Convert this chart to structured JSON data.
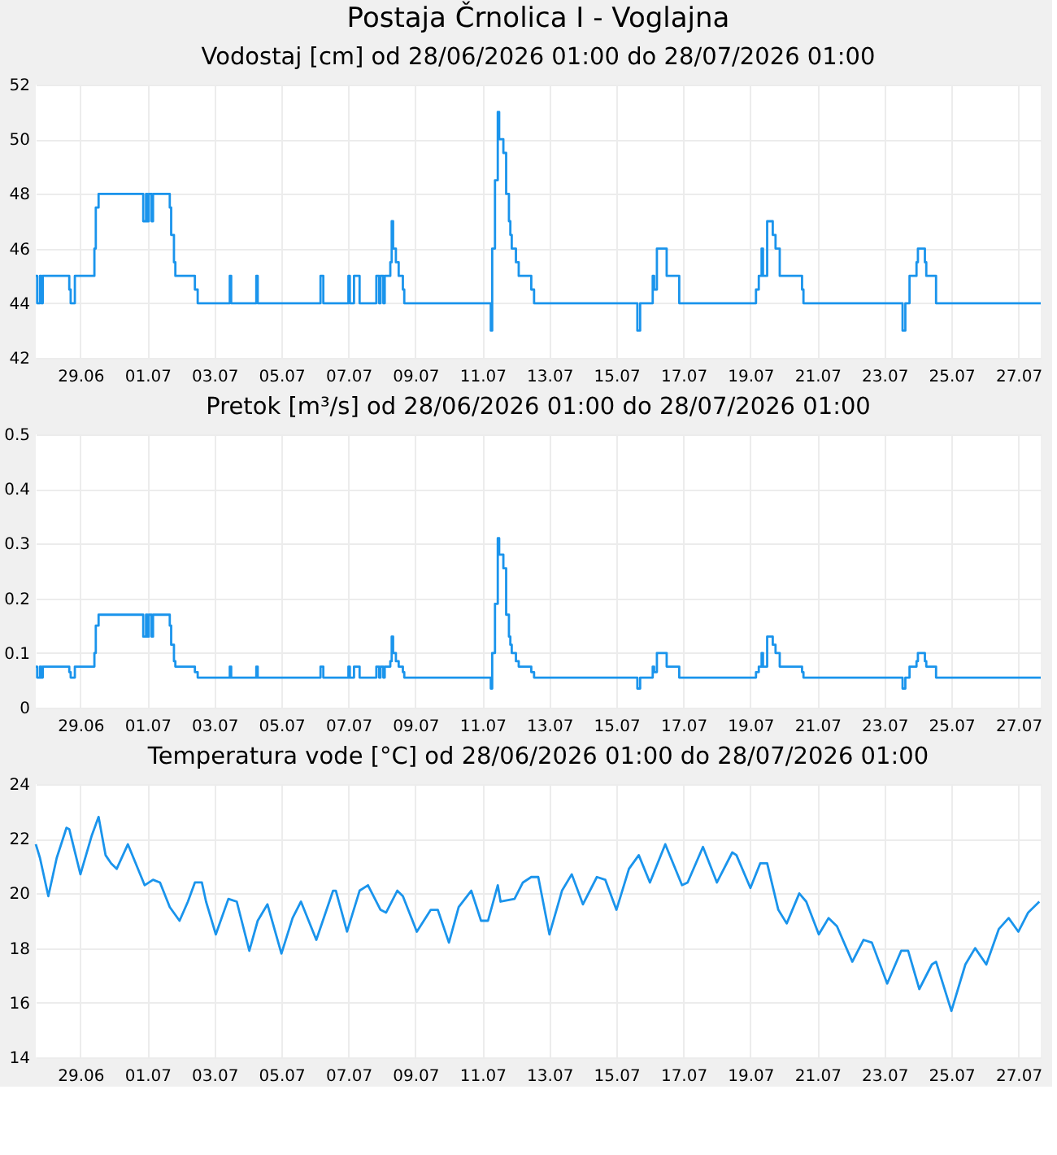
{
  "chart_data": [
    {
      "type": "step",
      "title": "Postaja Črnolica I - Voglajna",
      "subtitle": "Vodostaj [cm] od 28/06/2026 01:00 do 28/07/2026 01:00",
      "x": [
        "2026-06-27T16:00",
        "2026-06-27T17:00",
        "2026-06-27T19:00",
        "2026-06-27T20:00",
        "2026-06-27T21:00",
        "2026-06-28T16:00",
        "2026-06-28T17:00",
        "2026-06-28T20:00",
        "2026-06-29T10:00",
        "2026-06-29T11:00",
        "2026-06-29T13:00",
        "2026-06-30T21:00",
        "2026-06-30T23:00",
        "2026-07-01T00:00",
        "2026-07-01T01:00",
        "2026-07-01T03:00",
        "2026-07-01T04:00",
        "2026-07-01T16:00",
        "2026-07-01T17:00",
        "2026-07-01T19:00",
        "2026-07-01T20:00",
        "2026-07-02T10:00",
        "2026-07-02T12:00",
        "2026-07-03T11:00",
        "2026-07-03T12:00",
        "2026-07-04T06:00",
        "2026-07-04T07:00",
        "2026-07-06T04:00",
        "2026-07-06T06:00",
        "2026-07-07T00:00",
        "2026-07-07T01:00",
        "2026-07-07T04:00",
        "2026-07-07T08:00",
        "2026-07-07T20:00",
        "2026-07-07T22:00",
        "2026-07-07T23:00",
        "2026-07-08T01:00",
        "2026-07-08T02:00",
        "2026-07-08T06:00",
        "2026-07-08T07:00",
        "2026-07-08T08:00",
        "2026-07-08T10:00",
        "2026-07-08T12:00",
        "2026-07-08T15:00",
        "2026-07-08T16:00",
        "2026-07-11T06:00",
        "2026-07-11T07:00",
        "2026-07-11T09:00",
        "2026-07-11T11:00",
        "2026-07-11T12:00",
        "2026-07-11T15:00",
        "2026-07-11T17:00",
        "2026-07-11T19:00",
        "2026-07-11T20:00",
        "2026-07-11T21:00",
        "2026-07-12T00:00",
        "2026-07-12T02:00",
        "2026-07-12T11:00",
        "2026-07-12T13:00",
        "2026-07-15T15:00",
        "2026-07-15T17:00",
        "2026-07-16T02:00",
        "2026-07-16T03:00",
        "2026-07-16T05:00",
        "2026-07-16T12:00",
        "2026-07-16T21:00",
        "2026-07-19T04:00",
        "2026-07-19T06:00",
        "2026-07-19T08:00",
        "2026-07-19T09:00",
        "2026-07-19T12:00",
        "2026-07-19T16:00",
        "2026-07-19T18:00",
        "2026-07-19T21:00",
        "2026-07-20T13:00",
        "2026-07-20T14:00",
        "2026-07-23T13:00",
        "2026-07-23T15:00",
        "2026-07-23T18:00",
        "2026-07-23T23:00",
        "2026-07-24T00:00",
        "2026-07-24T05:00",
        "2026-07-24T06:00",
        "2026-07-24T13:00",
        "2026-07-27T16:00"
      ],
      "series": [
        {
          "color": "#1a94ec",
          "values": [
            45,
            44,
            45,
            44,
            45,
            44.5,
            44,
            45,
            46,
            47.5,
            48,
            47,
            48,
            47,
            48,
            47,
            48,
            47.5,
            46.5,
            45.5,
            45,
            44.5,
            44,
            45,
            44,
            45,
            44,
            45,
            44,
            45,
            44,
            45,
            44,
            45,
            44,
            45,
            44,
            45,
            45.5,
            47,
            46,
            45.5,
            45,
            44.5,
            44,
            43,
            46,
            48.5,
            51,
            50,
            49.5,
            48,
            47,
            46.5,
            46,
            45.5,
            45,
            44.5,
            44,
            43,
            44,
            45,
            44.5,
            46,
            45,
            44,
            44.5,
            45,
            46,
            45,
            47,
            46.5,
            46,
            45,
            44.5,
            44,
            43,
            44,
            45,
            45.5,
            46,
            45.5,
            45,
            44,
            44
          ]
        }
      ],
      "xlim": [
        "2026-06-27T16:00",
        "2026-07-27T16:00"
      ],
      "xticks": [
        {
          "value": "2026-06-29",
          "label": "29.06"
        },
        {
          "value": "2026-07-01",
          "label": "01.07"
        },
        {
          "value": "2026-07-03",
          "label": "03.07"
        },
        {
          "value": "2026-07-05",
          "label": "05.07"
        },
        {
          "value": "2026-07-07",
          "label": "07.07"
        },
        {
          "value": "2026-07-09",
          "label": "09.07"
        },
        {
          "value": "2026-07-11",
          "label": "11.07"
        },
        {
          "value": "2026-07-13",
          "label": "13.07"
        },
        {
          "value": "2026-07-15",
          "label": "15.07"
        },
        {
          "value": "2026-07-17",
          "label": "17.07"
        },
        {
          "value": "2026-07-19",
          "label": "19.07"
        },
        {
          "value": "2026-07-21",
          "label": "21.07"
        },
        {
          "value": "2026-07-23",
          "label": "23.07"
        },
        {
          "value": "2026-07-25",
          "label": "25.07"
        },
        {
          "value": "2026-07-27",
          "label": "27.07"
        }
      ],
      "ylim": [
        42,
        52
      ],
      "yticks": [
        42,
        44,
        46,
        48,
        50,
        52
      ],
      "grid": true
    },
    {
      "type": "step",
      "title": "Pretok [m³/s] od 28/06/2026 01:00 do 28/07/2026 01:00",
      "x": [
        "2026-06-27T16:00",
        "2026-06-27T17:00",
        "2026-06-27T19:00",
        "2026-06-27T20:00",
        "2026-06-27T21:00",
        "2026-06-28T16:00",
        "2026-06-28T17:00",
        "2026-06-28T20:00",
        "2026-06-29T10:00",
        "2026-06-29T11:00",
        "2026-06-29T13:00",
        "2026-06-30T21:00",
        "2026-06-30T23:00",
        "2026-07-01T00:00",
        "2026-07-01T01:00",
        "2026-07-01T03:00",
        "2026-07-01T04:00",
        "2026-07-01T16:00",
        "2026-07-01T17:00",
        "2026-07-01T19:00",
        "2026-07-01T20:00",
        "2026-07-02T10:00",
        "2026-07-02T12:00",
        "2026-07-03T11:00",
        "2026-07-03T12:00",
        "2026-07-04T06:00",
        "2026-07-04T07:00",
        "2026-07-06T04:00",
        "2026-07-06T06:00",
        "2026-07-07T00:00",
        "2026-07-07T01:00",
        "2026-07-07T04:00",
        "2026-07-07T08:00",
        "2026-07-07T20:00",
        "2026-07-07T22:00",
        "2026-07-07T23:00",
        "2026-07-08T01:00",
        "2026-07-08T02:00",
        "2026-07-08T06:00",
        "2026-07-08T07:00",
        "2026-07-08T08:00",
        "2026-07-08T10:00",
        "2026-07-08T12:00",
        "2026-07-08T15:00",
        "2026-07-08T16:00",
        "2026-07-11T06:00",
        "2026-07-11T07:00",
        "2026-07-11T09:00",
        "2026-07-11T11:00",
        "2026-07-11T12:00",
        "2026-07-11T15:00",
        "2026-07-11T17:00",
        "2026-07-11T19:00",
        "2026-07-11T20:00",
        "2026-07-11T21:00",
        "2026-07-12T00:00",
        "2026-07-12T02:00",
        "2026-07-12T11:00",
        "2026-07-12T13:00",
        "2026-07-15T15:00",
        "2026-07-15T17:00",
        "2026-07-16T02:00",
        "2026-07-16T03:00",
        "2026-07-16T05:00",
        "2026-07-16T12:00",
        "2026-07-16T21:00",
        "2026-07-19T04:00",
        "2026-07-19T06:00",
        "2026-07-19T08:00",
        "2026-07-19T09:00",
        "2026-07-19T12:00",
        "2026-07-19T16:00",
        "2026-07-19T18:00",
        "2026-07-19T21:00",
        "2026-07-20T13:00",
        "2026-07-20T14:00",
        "2026-07-23T13:00",
        "2026-07-23T15:00",
        "2026-07-23T18:00",
        "2026-07-23T23:00",
        "2026-07-24T00:00",
        "2026-07-24T05:00",
        "2026-07-24T06:00",
        "2026-07-24T13:00",
        "2026-07-27T16:00"
      ],
      "series": [
        {
          "color": "#1a94ec",
          "values": [
            0.075,
            0.055,
            0.075,
            0.055,
            0.075,
            0.065,
            0.055,
            0.075,
            0.1,
            0.15,
            0.17,
            0.13,
            0.17,
            0.13,
            0.17,
            0.13,
            0.17,
            0.15,
            0.115,
            0.085,
            0.075,
            0.065,
            0.055,
            0.075,
            0.055,
            0.075,
            0.055,
            0.075,
            0.055,
            0.075,
            0.055,
            0.075,
            0.055,
            0.075,
            0.055,
            0.075,
            0.055,
            0.075,
            0.085,
            0.13,
            0.1,
            0.085,
            0.075,
            0.065,
            0.055,
            0.035,
            0.1,
            0.19,
            0.31,
            0.28,
            0.255,
            0.17,
            0.13,
            0.115,
            0.1,
            0.085,
            0.075,
            0.065,
            0.055,
            0.035,
            0.055,
            0.075,
            0.065,
            0.1,
            0.075,
            0.055,
            0.065,
            0.075,
            0.1,
            0.075,
            0.13,
            0.115,
            0.1,
            0.075,
            0.065,
            0.055,
            0.035,
            0.055,
            0.075,
            0.085,
            0.1,
            0.085,
            0.075,
            0.055,
            0.055
          ]
        }
      ],
      "xlim": [
        "2026-06-27T16:00",
        "2026-07-27T16:00"
      ],
      "xticks": [
        {
          "value": "2026-06-29",
          "label": "29.06"
        },
        {
          "value": "2026-07-01",
          "label": "01.07"
        },
        {
          "value": "2026-07-03",
          "label": "03.07"
        },
        {
          "value": "2026-07-05",
          "label": "05.07"
        },
        {
          "value": "2026-07-07",
          "label": "07.07"
        },
        {
          "value": "2026-07-09",
          "label": "09.07"
        },
        {
          "value": "2026-07-11",
          "label": "11.07"
        },
        {
          "value": "2026-07-13",
          "label": "13.07"
        },
        {
          "value": "2026-07-15",
          "label": "15.07"
        },
        {
          "value": "2026-07-17",
          "label": "17.07"
        },
        {
          "value": "2026-07-19",
          "label": "19.07"
        },
        {
          "value": "2026-07-21",
          "label": "21.07"
        },
        {
          "value": "2026-07-23",
          "label": "23.07"
        },
        {
          "value": "2026-07-25",
          "label": "25.07"
        },
        {
          "value": "2026-07-27",
          "label": "27.07"
        }
      ],
      "ylim": [
        0,
        0.5
      ],
      "yticks": [
        0,
        0.1,
        0.2,
        0.3,
        0.4,
        0.5
      ],
      "grid": true
    },
    {
      "type": "line",
      "title": "Temperatura vode [°C] od 28/06/2026 01:00 do 28/07/2026 01:00",
      "x": [
        "2026-06-27T16:00",
        "2026-06-27T19:00",
        "2026-06-28T01:00",
        "2026-06-28T07:00",
        "2026-06-28T14:00",
        "2026-06-28T16:00",
        "2026-06-29T00:00",
        "2026-06-29T08:00",
        "2026-06-29T13:00",
        "2026-06-29T18:00",
        "2026-06-29T22:00",
        "2026-06-30T02:00",
        "2026-06-30T10:00",
        "2026-06-30T22:00",
        "2026-07-01T04:00",
        "2026-07-01T09:00",
        "2026-07-01T16:00",
        "2026-07-01T23:00",
        "2026-07-02T05:00",
        "2026-07-02T10:00",
        "2026-07-02T15:00",
        "2026-07-02T18:00",
        "2026-07-03T01:00",
        "2026-07-03T10:00",
        "2026-07-03T16:00",
        "2026-07-04T01:00",
        "2026-07-04T07:00",
        "2026-07-04T14:00",
        "2026-07-05T00:00",
        "2026-07-05T08:00",
        "2026-07-05T14:00",
        "2026-07-06T01:00",
        "2026-07-06T13:00",
        "2026-07-06T15:00",
        "2026-07-06T23:00",
        "2026-07-07T08:00",
        "2026-07-07T14:00",
        "2026-07-07T23:00",
        "2026-07-08T03:00",
        "2026-07-08T11:00",
        "2026-07-08T15:00",
        "2026-07-09T01:00",
        "2026-07-09T11:00",
        "2026-07-09T16:00",
        "2026-07-10T00:00",
        "2026-07-10T07:00",
        "2026-07-10T16:00",
        "2026-07-10T23:00",
        "2026-07-11T04:00",
        "2026-07-11T11:00",
        "2026-07-11T13:00",
        "2026-07-11T23:00",
        "2026-07-12T05:00",
        "2026-07-12T11:00",
        "2026-07-12T16:00",
        "2026-07-13T00:00",
        "2026-07-13T09:00",
        "2026-07-13T16:00",
        "2026-07-14T00:00",
        "2026-07-14T10:00",
        "2026-07-14T16:00",
        "2026-07-15T00:00",
        "2026-07-15T09:00",
        "2026-07-15T16:00",
        "2026-07-16T00:00",
        "2026-07-16T11:00",
        "2026-07-16T23:00",
        "2026-07-17T03:00",
        "2026-07-17T14:00",
        "2026-07-18T00:00",
        "2026-07-18T11:00",
        "2026-07-18T14:00",
        "2026-07-19T00:00",
        "2026-07-19T07:00",
        "2026-07-19T12:00",
        "2026-07-19T20:00",
        "2026-07-20T02:00",
        "2026-07-20T11:00",
        "2026-07-20T16:00",
        "2026-07-21T01:00",
        "2026-07-21T08:00",
        "2026-07-21T14:00",
        "2026-07-22T01:00",
        "2026-07-22T09:00",
        "2026-07-22T15:00",
        "2026-07-23T02:00",
        "2026-07-23T12:00",
        "2026-07-23T17:00",
        "2026-07-24T01:00",
        "2026-07-24T10:00",
        "2026-07-24T13:00",
        "2026-07-25T00:00",
        "2026-07-25T10:00",
        "2026-07-25T17:00",
        "2026-07-26T01:00",
        "2026-07-26T10:00",
        "2026-07-26T17:00",
        "2026-07-27T00:00",
        "2026-07-27T07:00",
        "2026-07-27T15:00"
      ],
      "series": [
        {
          "color": "#1a94ec",
          "values": [
            21.8,
            21.3,
            19.9,
            21.3,
            22.4,
            22.35,
            20.7,
            22.1,
            22.8,
            21.4,
            21.1,
            20.9,
            21.8,
            20.3,
            20.5,
            20.4,
            19.5,
            19.0,
            19.7,
            20.4,
            20.4,
            19.7,
            18.5,
            19.8,
            19.7,
            17.9,
            19.0,
            19.6,
            17.8,
            19.1,
            19.7,
            18.3,
            20.1,
            20.1,
            18.6,
            20.1,
            20.3,
            19.4,
            19.3,
            20.1,
            19.9,
            18.6,
            19.4,
            19.4,
            18.2,
            19.5,
            20.1,
            19.0,
            19.0,
            20.3,
            19.7,
            19.8,
            20.4,
            20.6,
            20.6,
            18.5,
            20.1,
            20.7,
            19.6,
            20.6,
            20.5,
            19.4,
            20.9,
            21.4,
            20.4,
            21.8,
            20.3,
            20.4,
            21.7,
            20.4,
            21.5,
            21.4,
            20.2,
            21.1,
            21.1,
            19.4,
            18.9,
            20.0,
            19.7,
            18.5,
            19.1,
            18.8,
            17.5,
            18.3,
            18.2,
            16.7,
            17.9,
            17.9,
            16.5,
            17.4,
            17.5,
            15.7,
            17.4,
            18.0,
            17.4,
            18.7,
            19.1,
            18.6,
            19.3,
            19.7
          ]
        }
      ],
      "xlim": [
        "2026-06-27T16:00",
        "2026-07-27T16:00"
      ],
      "xticks": [
        {
          "value": "2026-06-29",
          "label": "29.06"
        },
        {
          "value": "2026-07-01",
          "label": "01.07"
        },
        {
          "value": "2026-07-03",
          "label": "03.07"
        },
        {
          "value": "2026-07-05",
          "label": "05.07"
        },
        {
          "value": "2026-07-07",
          "label": "07.07"
        },
        {
          "value": "2026-07-09",
          "label": "09.07"
        },
        {
          "value": "2026-07-11",
          "label": "11.07"
        },
        {
          "value": "2026-07-13",
          "label": "13.07"
        },
        {
          "value": "2026-07-15",
          "label": "15.07"
        },
        {
          "value": "2026-07-17",
          "label": "17.07"
        },
        {
          "value": "2026-07-19",
          "label": "19.07"
        },
        {
          "value": "2026-07-21",
          "label": "21.07"
        },
        {
          "value": "2026-07-23",
          "label": "23.07"
        },
        {
          "value": "2026-07-25",
          "label": "25.07"
        },
        {
          "value": "2026-07-27",
          "label": "27.07"
        }
      ],
      "ylim": [
        14,
        24
      ],
      "yticks": [
        14,
        16,
        18,
        20,
        22,
        24
      ],
      "grid": true
    }
  ]
}
